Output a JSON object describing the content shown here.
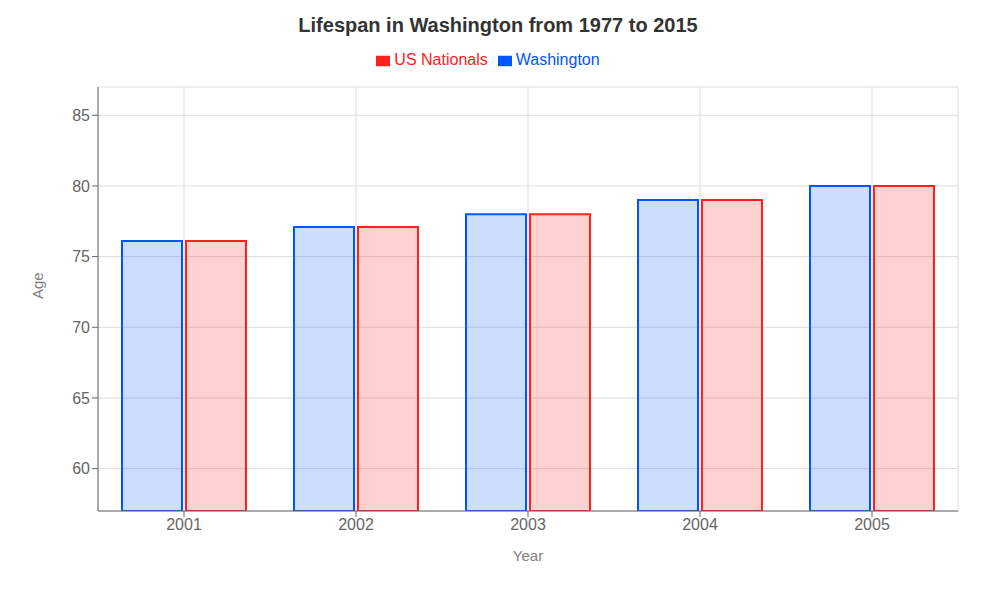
{
  "chart_data": {
    "type": "bar",
    "title": "Lifespan in Washington from 1977 to 2015",
    "xlabel": "Year",
    "ylabel": "Age",
    "categories": [
      "2001",
      "2002",
      "2003",
      "2004",
      "2005"
    ],
    "series": [
      {
        "name": "Washington",
        "color": "#0055ff",
        "values": [
          76.1,
          77.1,
          78.0,
          79.0,
          80.0
        ]
      },
      {
        "name": "US Nationals",
        "color": "#ff2020",
        "values": [
          76.1,
          77.1,
          78.0,
          79.0,
          80.0
        ]
      }
    ],
    "ylim": [
      57,
      87
    ],
    "yticks": [
      60,
      65,
      70,
      75,
      80,
      85
    ],
    "grid": true,
    "legend": "top"
  }
}
